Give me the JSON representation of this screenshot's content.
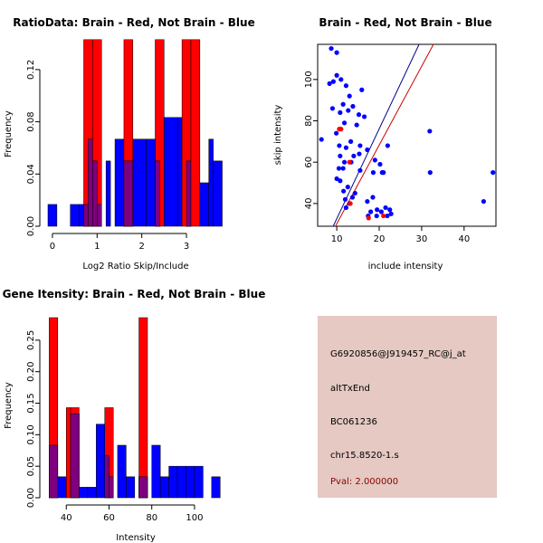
{
  "colors": {
    "red": "#ff0000",
    "blue": "#0000ff",
    "overlap": "#7f007f",
    "panel_bg": "#e5c9c2",
    "pval": "#8b0000",
    "line_blue": "#00008b",
    "line_red": "#cc0000"
  },
  "chart_data": [
    {
      "id": "ratio-hist",
      "type": "bar",
      "title": "RatioData: Brain - Red, Not Brain - Blue",
      "xlabel": "Log2 Ratio Skip/Include",
      "ylabel": "Frequency",
      "xlim": [
        -0.12,
        3.85
      ],
      "ylim": [
        0,
        0.14
      ],
      "xticks": [
        0,
        1,
        2,
        3
      ],
      "xtick_labels": [
        "0",
        "1",
        "2",
        "3"
      ],
      "yticks": [
        0.0,
        0.04,
        0.08,
        0.12
      ],
      "ytick_labels": [
        "0.00",
        "0.04",
        "0.08",
        "0.12"
      ],
      "series": [
        {
          "name": "Not Brain",
          "color": "blue",
          "bins": [
            [
              -0.1,
              0.1,
              0.0167
            ],
            [
              0.1,
              0.3,
              0.0
            ],
            [
              0.4,
              0.6,
              0.0167
            ],
            [
              0.6,
              0.8,
              0.0167
            ],
            [
              0.8,
              0.9,
              0.0667
            ],
            [
              0.9,
              1.0,
              0.05
            ],
            [
              1.0,
              1.1,
              0.0167
            ],
            [
              1.2,
              1.3,
              0.05
            ],
            [
              1.4,
              1.6,
              0.0667
            ],
            [
              1.6,
              1.8,
              0.05
            ],
            [
              1.8,
              2.1,
              0.0667
            ],
            [
              2.1,
              2.3,
              0.0667
            ],
            [
              2.3,
              2.4,
              0.05
            ],
            [
              2.5,
              2.8,
              0.0833
            ],
            [
              2.8,
              2.9,
              0.0833
            ],
            [
              3.0,
              3.1,
              0.05
            ],
            [
              3.1,
              3.2,
              0.0
            ],
            [
              3.3,
              3.5,
              0.0333
            ],
            [
              3.5,
              3.6,
              0.0667
            ],
            [
              3.6,
              3.8,
              0.05
            ]
          ]
        },
        {
          "name": "Brain",
          "color": "red",
          "bins": [
            [
              0.7,
              0.9,
              0.1429
            ],
            [
              0.9,
              1.1,
              0.1429
            ],
            [
              1.6,
              1.8,
              0.1429
            ],
            [
              1.8,
              2.0,
              0.0
            ],
            [
              2.3,
              2.5,
              0.1429
            ],
            [
              2.9,
              3.1,
              0.1429
            ],
            [
              3.1,
              3.3,
              0.1429
            ]
          ]
        }
      ]
    },
    {
      "id": "scatter",
      "type": "scatter",
      "title": "Brain - Red, Not Brain - Blue",
      "xlabel": "include intensity",
      "ylabel": "skip intensity",
      "xlim": [
        5.5,
        47.5
      ],
      "ylim": [
        29,
        117
      ],
      "xticks": [
        10,
        20,
        30,
        40
      ],
      "xtick_labels": [
        "10",
        "20",
        "30",
        "40"
      ],
      "yticks": [
        40,
        60,
        80,
        100
      ],
      "ytick_labels": [
        "40",
        "60",
        "80",
        "100"
      ],
      "series": [
        {
          "name": "Not Brain",
          "color": "blue",
          "points": [
            [
              8.7,
              115
            ],
            [
              10.0,
              113
            ],
            [
              9.2,
              99
            ],
            [
              8.3,
              98
            ],
            [
              10.0,
              102
            ],
            [
              11.0,
              100
            ],
            [
              12.2,
              97
            ],
            [
              13.0,
              92
            ],
            [
              11.5,
              88
            ],
            [
              13.8,
              87
            ],
            [
              9.0,
              86
            ],
            [
              10.8,
              84
            ],
            [
              12.7,
              85
            ],
            [
              14.7,
              78
            ],
            [
              15.2,
              83
            ],
            [
              16.5,
              82
            ],
            [
              15.9,
              95
            ],
            [
              11.8,
              79
            ],
            [
              9.9,
              74
            ],
            [
              6.4,
              71
            ],
            [
              10.6,
              68
            ],
            [
              12.2,
              67
            ],
            [
              13.3,
              70
            ],
            [
              15.5,
              68
            ],
            [
              14.0,
              63
            ],
            [
              15.3,
              64
            ],
            [
              10.8,
              63
            ],
            [
              11.8,
              60
            ],
            [
              13.4,
              60
            ],
            [
              10.5,
              57
            ],
            [
              11.5,
              57
            ],
            [
              15.5,
              56
            ],
            [
              19.0,
              61
            ],
            [
              20.2,
              59
            ],
            [
              21.0,
              55
            ],
            [
              18.6,
              55
            ],
            [
              20.7,
              55
            ],
            [
              22.0,
              68
            ],
            [
              17.2,
              66
            ],
            [
              10.0,
              52
            ],
            [
              10.8,
              51
            ],
            [
              12.6,
              48
            ],
            [
              14.3,
              45
            ],
            [
              11.6,
              46
            ],
            [
              13.7,
              43
            ],
            [
              12.0,
              42
            ],
            [
              13.0,
              40
            ],
            [
              12.2,
              38
            ],
            [
              17.2,
              41
            ],
            [
              18.5,
              43
            ],
            [
              19.5,
              37
            ],
            [
              21.5,
              38
            ],
            [
              22.5,
              37
            ],
            [
              22.8,
              35
            ],
            [
              21.9,
              34
            ],
            [
              20.5,
              36
            ],
            [
              18.0,
              36
            ],
            [
              17.4,
              34
            ],
            [
              19.4,
              34
            ],
            [
              31.9,
              75
            ],
            [
              32.0,
              55
            ],
            [
              46.8,
              55
            ],
            [
              44.6,
              41
            ]
          ]
        },
        {
          "name": "Brain",
          "color": "red",
          "points": [
            [
              10.6,
              76
            ],
            [
              11.0,
              76
            ],
            [
              13.0,
              60
            ],
            [
              13.2,
              40
            ],
            [
              17.5,
              33
            ],
            [
              21.0,
              34
            ]
          ]
        }
      ],
      "lines": [
        {
          "name": "blue-fit",
          "color": "line_blue",
          "intercept": -10.87,
          "slope": 4.35
        },
        {
          "name": "red-fit",
          "color": "line_red",
          "intercept": -7.91,
          "slope": 3.81
        }
      ]
    },
    {
      "id": "gene-hist",
      "type": "bar",
      "title": "Gene Itensity: Brain - Red, Not Brain - Blue",
      "xlabel": "Intensity",
      "ylabel": "Frequency",
      "xlim": [
        31,
        114
      ],
      "ylim": [
        0,
        0.29
      ],
      "xticks": [
        40,
        60,
        80,
        100
      ],
      "xtick_labels": [
        "40",
        "60",
        "80",
        "100"
      ],
      "yticks": [
        0.0,
        0.05,
        0.1,
        0.15,
        0.2,
        0.25
      ],
      "ytick_labels": [
        "0.00",
        "0.05",
        "0.10",
        "0.15",
        "0.20",
        "0.25"
      ],
      "series": [
        {
          "name": "Not Brain",
          "color": "blue",
          "bins": [
            [
              32,
              36,
              0.0833
            ],
            [
              36,
              40,
              0.0333
            ],
            [
              40,
              42,
              0.0
            ],
            [
              42,
              46,
              0.1333
            ],
            [
              46,
              50,
              0.0167
            ],
            [
              50,
              54,
              0.0167
            ],
            [
              54,
              58,
              0.1167
            ],
            [
              58,
              60,
              0.0667
            ],
            [
              60,
              62,
              0.0333
            ],
            [
              62,
              64,
              0.0
            ],
            [
              64,
              68,
              0.0833
            ],
            [
              68,
              72,
              0.0333
            ],
            [
              72,
              74,
              0.0
            ],
            [
              74,
              78,
              0.0333
            ],
            [
              78,
              80,
              0.0
            ],
            [
              80,
              84,
              0.0833
            ],
            [
              84,
              88,
              0.0333
            ],
            [
              88,
              92,
              0.05
            ],
            [
              92,
              96,
              0.05
            ],
            [
              96,
              100,
              0.05
            ],
            [
              100,
              104,
              0.05
            ],
            [
              104,
              108,
              0.0
            ],
            [
              108,
              112,
              0.0333
            ]
          ]
        },
        {
          "name": "Brain",
          "color": "red",
          "bins": [
            [
              32,
              36,
              0.2857
            ],
            [
              36,
              40,
              0.0
            ],
            [
              40,
              42,
              0.1429
            ],
            [
              42,
              46,
              0.1429
            ],
            [
              58,
              62,
              0.1429
            ],
            [
              74,
              78,
              0.2857
            ]
          ]
        }
      ]
    }
  ],
  "info": {
    "probe": "G6920856@J919457_RC@j_at",
    "event": "altTxEnd",
    "accession": "BC061236",
    "location": "chr15.8520-1.s",
    "pval": "Pval: 2.000000"
  }
}
